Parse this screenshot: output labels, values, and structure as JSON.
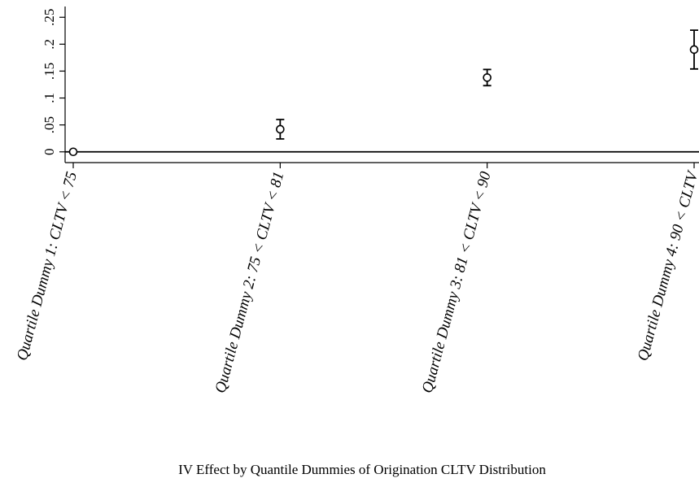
{
  "chart_data": {
    "type": "errorbar",
    "xlabel": "IV Effect by Quantile Dummies of Origination CLTV Distribution",
    "categories": [
      "Quartile Dummy 1: CLTV < 75",
      "Quartile Dummy 2: 75 < CLTV < 81",
      "Quartile Dummy 3: 81 < CLTV < 90",
      "Quartile Dummy 4: 90 < CLTV"
    ],
    "values": [
      0,
      0.042,
      0.138,
      0.19
    ],
    "errors": [
      0,
      0.018,
      0.015,
      0.036
    ],
    "color": "#000000",
    "hline": 0,
    "ylim": [
      -0.02,
      0.27
    ],
    "yticks": [
      0,
      {
        "value": 0.05,
        "label": ".05"
      },
      {
        "value": 0.1,
        "label": ".1"
      },
      {
        "value": 0.15,
        "label": ".15"
      },
      {
        "value": 0.2,
        "label": ".2"
      },
      {
        "value": 0.25,
        "label": ".25"
      }
    ]
  }
}
